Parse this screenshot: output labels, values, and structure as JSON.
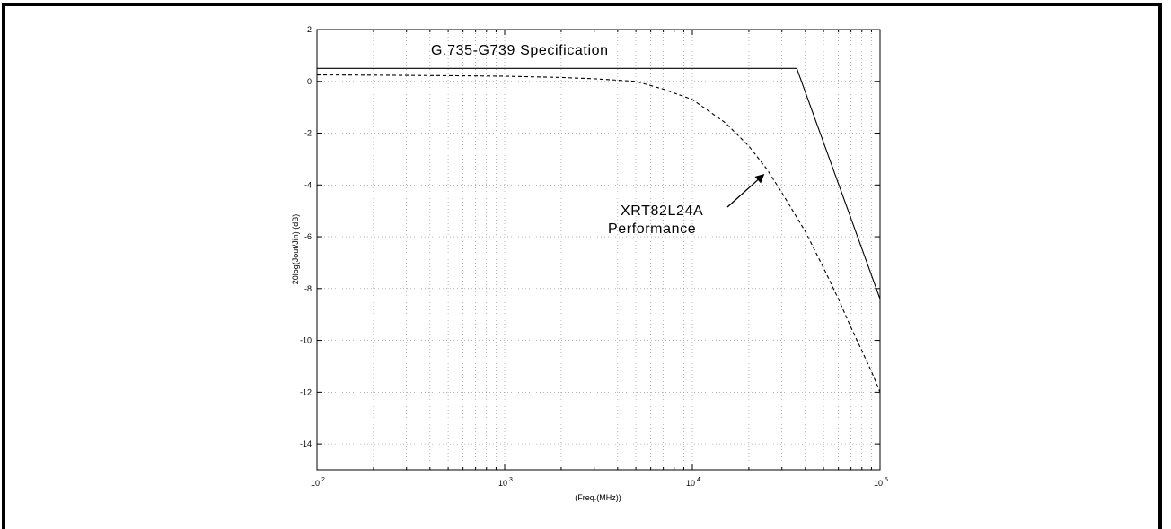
{
  "chart_data": {
    "type": "line",
    "title": "",
    "xlabel": "(Freq.(MHz))",
    "ylabel": "20log(Jout/Jin) (dB)",
    "x_scale": "log",
    "xlim": [
      100,
      100000
    ],
    "ylim": [
      -15,
      2
    ],
    "grid": true,
    "x_ticks": [
      {
        "base": "10",
        "exp": "2",
        "value": 100
      },
      {
        "base": "10",
        "exp": "3",
        "value": 1000
      },
      {
        "base": "10",
        "exp": "4",
        "value": 10000
      },
      {
        "base": "10",
        "exp": "5",
        "value": 100000
      }
    ],
    "y_ticks": [
      "2",
      "0",
      "-2",
      "-4",
      "-6",
      "-8",
      "-10",
      "-12",
      "-14"
    ],
    "series": [
      {
        "style": "solid",
        "color": "#000000",
        "points": [
          [
            100,
            0.5
          ],
          [
            36000,
            0.5
          ],
          [
            100000,
            -8.4
          ]
        ]
      },
      {
        "style": "dashed",
        "color": "#000000",
        "points": [
          [
            100,
            0.25
          ],
          [
            200,
            0.24
          ],
          [
            500,
            0.22
          ],
          [
            1000,
            0.2
          ],
          [
            2000,
            0.15
          ],
          [
            3000,
            0.1
          ],
          [
            5000,
            0.0
          ],
          [
            7000,
            -0.3
          ],
          [
            10000,
            -0.7
          ],
          [
            15000,
            -1.6
          ],
          [
            20000,
            -2.5
          ],
          [
            25000,
            -3.4
          ],
          [
            30000,
            -4.3
          ],
          [
            40000,
            -5.8
          ],
          [
            50000,
            -7.2
          ],
          [
            60000,
            -8.4
          ],
          [
            70000,
            -9.5
          ],
          [
            80000,
            -10.4
          ],
          [
            90000,
            -11.2
          ],
          [
            100000,
            -12.0
          ]
        ]
      }
    ],
    "annotations": {
      "spec_label": "G.735-G739 Specification",
      "perf_label_line1": "XRT82L24A",
      "perf_label_line2": "Performance",
      "arrow_target": [
        24000,
        -3.6
      ]
    }
  }
}
